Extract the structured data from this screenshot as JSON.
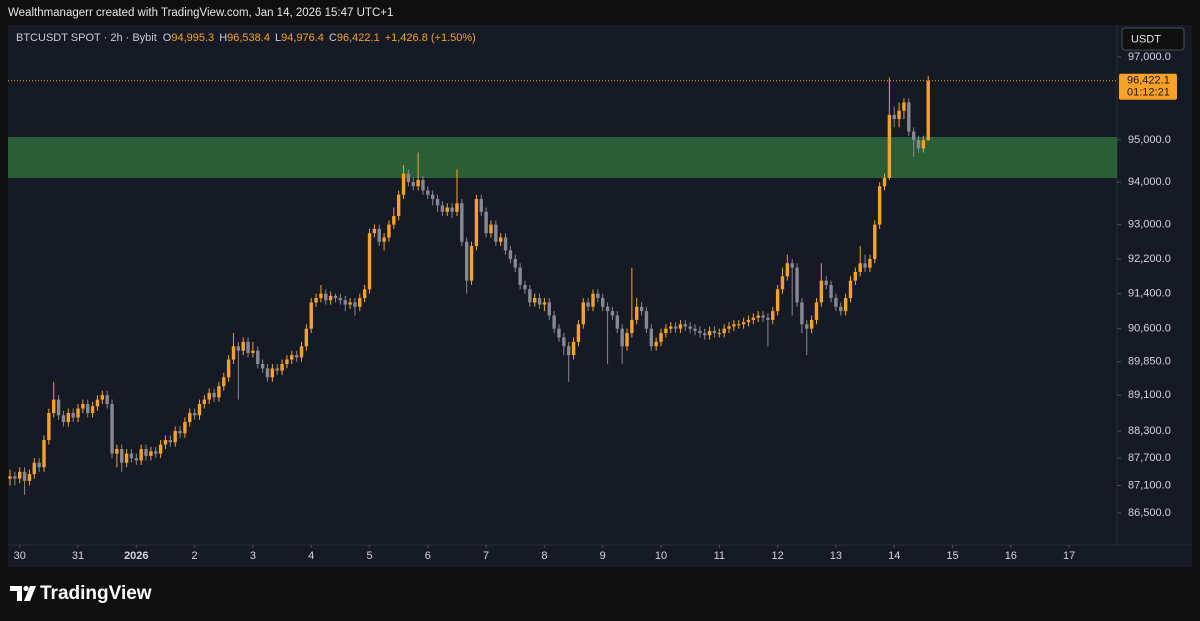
{
  "header": {
    "caption": "Wealthmanagerr created with TradingView.com, Jan 14, 2026 15:47 UTC+1"
  },
  "chart_data": {
    "type": "candlestick",
    "symbol": "BTCUSDT SPOT · 2h · Bybit",
    "legend": [
      {
        "key": "O",
        "value": "94,995.3"
      },
      {
        "key": "H",
        "value": "96,538.4"
      },
      {
        "key": "L",
        "value": "94,976.4"
      },
      {
        "key": "C",
        "value": "96,422.1"
      }
    ],
    "change": "+1,426.8 (+1.50%)",
    "currency": "USDT",
    "log_scale": true,
    "ylim": [
      85915,
      97783
    ],
    "yticks": [
      {
        "value": 97000,
        "label": "97,000.0"
      },
      {
        "value": 95000,
        "label": "95,000.0"
      },
      {
        "value": 94000,
        "label": "94,000.0"
      },
      {
        "value": 93000,
        "label": "93,000.0"
      },
      {
        "value": 92200,
        "label": "92,200.0"
      },
      {
        "value": 91400,
        "label": "91,400.0"
      },
      {
        "value": 90600,
        "label": "90,600.0"
      },
      {
        "value": 89850,
        "label": "89,850.0"
      },
      {
        "value": 89100,
        "label": "89,100.0"
      },
      {
        "value": 88300,
        "label": "88,300.0"
      },
      {
        "value": 87700,
        "label": "87,700.0"
      },
      {
        "value": 87100,
        "label": "87,100.0"
      },
      {
        "value": 86500,
        "label": "86,500.0"
      }
    ],
    "xticks": [
      "30",
      "31",
      "2026",
      "2",
      "3",
      "4",
      "5",
      "6",
      "7",
      "8",
      "9",
      "10",
      "11",
      "12",
      "13",
      "14",
      "15",
      "16",
      "17"
    ],
    "up_color": "#f7a127",
    "down_color": "#868993",
    "zone": {
      "low": 94095,
      "high": 95070,
      "color": "#2f6b3a"
    },
    "last_price": {
      "value": 96422.1,
      "label": "96,422.1",
      "countdown": "01:12:21"
    },
    "open": [
      87250,
      87300,
      87250,
      87400,
      87200,
      87350,
      87600,
      87500,
      88100,
      88700,
      89000,
      88650,
      88500,
      88700,
      88600,
      88800,
      88900,
      88700,
      88850,
      89000,
      89100,
      88900,
      87800,
      87900,
      87600,
      87800,
      87700,
      87650,
      87900,
      87750,
      87850,
      87800,
      88000,
      88100,
      88050,
      88300,
      88250,
      88500,
      88700,
      88650,
      88900,
      89000,
      89150,
      89050,
      89300,
      89500,
      89900,
      90200,
      90100,
      90300,
      90050,
      90100,
      89800,
      89700,
      89500,
      89700,
      89650,
      89800,
      89900,
      90000,
      89950,
      90200,
      90600,
      91200,
      91300,
      91400,
      91250,
      91350,
      91300,
      91250,
      91150,
      91200,
      91100,
      91300,
      91500,
      92800,
      92900,
      92600,
      92700,
      93000,
      93200,
      93700,
      94200,
      94000,
      93900,
      94050,
      93800,
      93700,
      93600,
      93450,
      93300,
      93400,
      93300,
      93500,
      92600,
      91700,
      92500,
      93600,
      93300,
      92800,
      93000,
      92600,
      92700,
      92400,
      92200,
      92000,
      91600,
      91500,
      91200,
      91300,
      91150,
      91200,
      90900,
      90600,
      90400,
      90200,
      90000,
      90300,
      90700,
      91200,
      91100,
      91400,
      91300,
      91100,
      91000,
      90900,
      90600,
      90200,
      90500,
      90800,
      91100,
      91000,
      90600,
      90200,
      90300,
      90500,
      90600,
      90650,
      90600,
      90700,
      90650,
      90600,
      90550,
      90500,
      90450,
      90550,
      90500,
      90500,
      90600,
      90650,
      90700,
      90700,
      90750,
      90800,
      90850,
      90900,
      90850,
      90800,
      91000,
      91500,
      91800,
      92100,
      92000,
      91200,
      90700,
      90600,
      90800,
      91200,
      91700,
      91600,
      91300,
      91100,
      91000,
      91300,
      91700,
      91900,
      92100,
      92000,
      92200,
      93000,
      93900,
      94100,
      95600,
      95500,
      95700,
      95900,
      95200,
      95000,
      94800,
      94995.3
    ],
    "high": [
      87450,
      87400,
      87500,
      87500,
      87450,
      87700,
      87700,
      88200,
      88800,
      89400,
      89100,
      88750,
      88800,
      88800,
      88900,
      89000,
      89000,
      88950,
      89100,
      89200,
      89200,
      89000,
      88000,
      88000,
      87900,
      87900,
      87800,
      88000,
      88000,
      87950,
      87950,
      88100,
      88200,
      88200,
      88400,
      88400,
      88600,
      88800,
      88800,
      89000,
      89100,
      89250,
      89250,
      89400,
      89600,
      90000,
      90500,
      90300,
      90400,
      90400,
      90300,
      90200,
      89900,
      89800,
      89800,
      89800,
      89900,
      90000,
      90100,
      90100,
      90300,
      90700,
      91300,
      91400,
      91600,
      91500,
      91450,
      91400,
      91400,
      91350,
      91300,
      91300,
      91400,
      91600,
      92900,
      93000,
      93000,
      92800,
      93100,
      93400,
      93800,
      94400,
      94300,
      94100,
      94700,
      94150,
      93900,
      93800,
      93700,
      93550,
      93500,
      93500,
      94300,
      93600,
      92700,
      92600,
      93700,
      93700,
      93400,
      93100,
      93100,
      92800,
      92800,
      92500,
      92300,
      92100,
      91700,
      91600,
      91400,
      91400,
      91300,
      91300,
      91000,
      90700,
      90500,
      90300,
      90400,
      90800,
      91300,
      91300,
      91500,
      91500,
      91400,
      91200,
      91100,
      91000,
      90700,
      90600,
      92000,
      91300,
      91200,
      91100,
      90700,
      90400,
      90600,
      90700,
      90750,
      90750,
      90800,
      90800,
      90750,
      90700,
      90650,
      90600,
      90650,
      90650,
      90600,
      90700,
      90750,
      90800,
      90800,
      90850,
      90900,
      90950,
      91000,
      91000,
      90950,
      91100,
      91600,
      92000,
      92300,
      92200,
      92100,
      91300,
      90800,
      90900,
      91300,
      92100,
      91800,
      91700,
      91400,
      91200,
      91400,
      91800,
      92000,
      92500,
      92300,
      92300,
      93100,
      94000,
      94200,
      96500,
      95800,
      95900,
      96000,
      96000,
      95300,
      95100,
      95100,
      96538.4
    ],
    "low": [
      87100,
      87100,
      87150,
      86900,
      87100,
      87250,
      87400,
      87400,
      88000,
      88600,
      88550,
      88400,
      88400,
      88500,
      88500,
      88700,
      88600,
      88600,
      88750,
      88900,
      88800,
      87700,
      87500,
      87400,
      87500,
      87600,
      87550,
      87550,
      87650,
      87650,
      87700,
      87700,
      87900,
      87950,
      87950,
      88150,
      88150,
      88400,
      88550,
      88550,
      88800,
      88900,
      88950,
      88950,
      89200,
      89400,
      89800,
      89000,
      90000,
      89950,
      89950,
      89700,
      89600,
      89400,
      89400,
      89550,
      89550,
      89700,
      89800,
      89850,
      89850,
      90100,
      90500,
      91100,
      91200,
      91150,
      91150,
      91200,
      91150,
      91000,
      91050,
      90900,
      91000,
      91200,
      91400,
      92700,
      92500,
      92400,
      92600,
      92900,
      93100,
      93600,
      93900,
      93800,
      93800,
      93700,
      93600,
      93450,
      93300,
      93200,
      93200,
      93150,
      93200,
      92500,
      91400,
      91600,
      92400,
      93200,
      92700,
      92700,
      92500,
      92500,
      92300,
      92100,
      91900,
      91500,
      91400,
      91100,
      91100,
      91050,
      91000,
      90800,
      90500,
      90300,
      90000,
      89400,
      89900,
      90200,
      90600,
      91000,
      91000,
      91200,
      91000,
      89800,
      90800,
      90500,
      89800,
      90100,
      90400,
      90700,
      90900,
      90500,
      90100,
      90100,
      90200,
      90400,
      90500,
      90500,
      90500,
      90550,
      90500,
      90450,
      90400,
      90350,
      90350,
      90400,
      90400,
      90400,
      90500,
      90550,
      90600,
      90600,
      90650,
      90700,
      90750,
      90750,
      90200,
      90700,
      90900,
      91400,
      91700,
      90900,
      91100,
      90500,
      90000,
      90500,
      90700,
      91100,
      91500,
      91200,
      91000,
      90900,
      90900,
      91200,
      91600,
      91800,
      91900,
      91900,
      92100,
      92900,
      93800,
      94050,
      95300,
      95300,
      95500,
      95100,
      94600,
      94700,
      94700,
      94976.4
    ],
    "close": [
      87300,
      87250,
      87400,
      87200,
      87350,
      87600,
      87500,
      88100,
      88700,
      89000,
      88650,
      88500,
      88700,
      88600,
      88800,
      88900,
      88700,
      88850,
      89000,
      89100,
      88900,
      87800,
      87900,
      87600,
      87800,
      87700,
      87650,
      87900,
      87750,
      87850,
      87800,
      88000,
      88100,
      88050,
      88300,
      88250,
      88500,
      88700,
      88650,
      88900,
      89000,
      89150,
      89050,
      89300,
      89500,
      89900,
      90200,
      90100,
      90300,
      90050,
      90100,
      89800,
      89700,
      89500,
      89700,
      89650,
      89800,
      89900,
      90000,
      89950,
      90200,
      90600,
      91200,
      91300,
      91400,
      91250,
      91350,
      91300,
      91250,
      91150,
      91200,
      91100,
      91300,
      91500,
      92800,
      92900,
      92600,
      92700,
      93000,
      93200,
      93700,
      94200,
      94000,
      93900,
      94050,
      93800,
      93700,
      93600,
      93450,
      93300,
      93400,
      93300,
      93500,
      92600,
      91700,
      92500,
      93600,
      93300,
      92800,
      93000,
      92600,
      92700,
      92400,
      92200,
      92000,
      91600,
      91500,
      91200,
      91300,
      91150,
      91200,
      90900,
      90600,
      90400,
      90200,
      90000,
      90300,
      90700,
      91200,
      91100,
      91400,
      91300,
      91100,
      91000,
      90900,
      90600,
      90200,
      90500,
      90800,
      91100,
      91000,
      90600,
      90200,
      90300,
      90500,
      90600,
      90650,
      90600,
      90700,
      90650,
      90600,
      90550,
      90500,
      90450,
      90550,
      90500,
      90500,
      90600,
      90650,
      90700,
      90700,
      90750,
      90800,
      90850,
      90900,
      90850,
      90800,
      91000,
      91500,
      91800,
      92100,
      92000,
      91200,
      90700,
      90600,
      90800,
      91200,
      91700,
      91600,
      91300,
      91100,
      91000,
      91300,
      91700,
      91900,
      92100,
      92000,
      92200,
      93000,
      93900,
      94100,
      95600,
      95500,
      95700,
      95900,
      95200,
      95000,
      94800,
      94995.3,
      96422.1
    ]
  },
  "footer": {
    "brand": "TradingView"
  }
}
